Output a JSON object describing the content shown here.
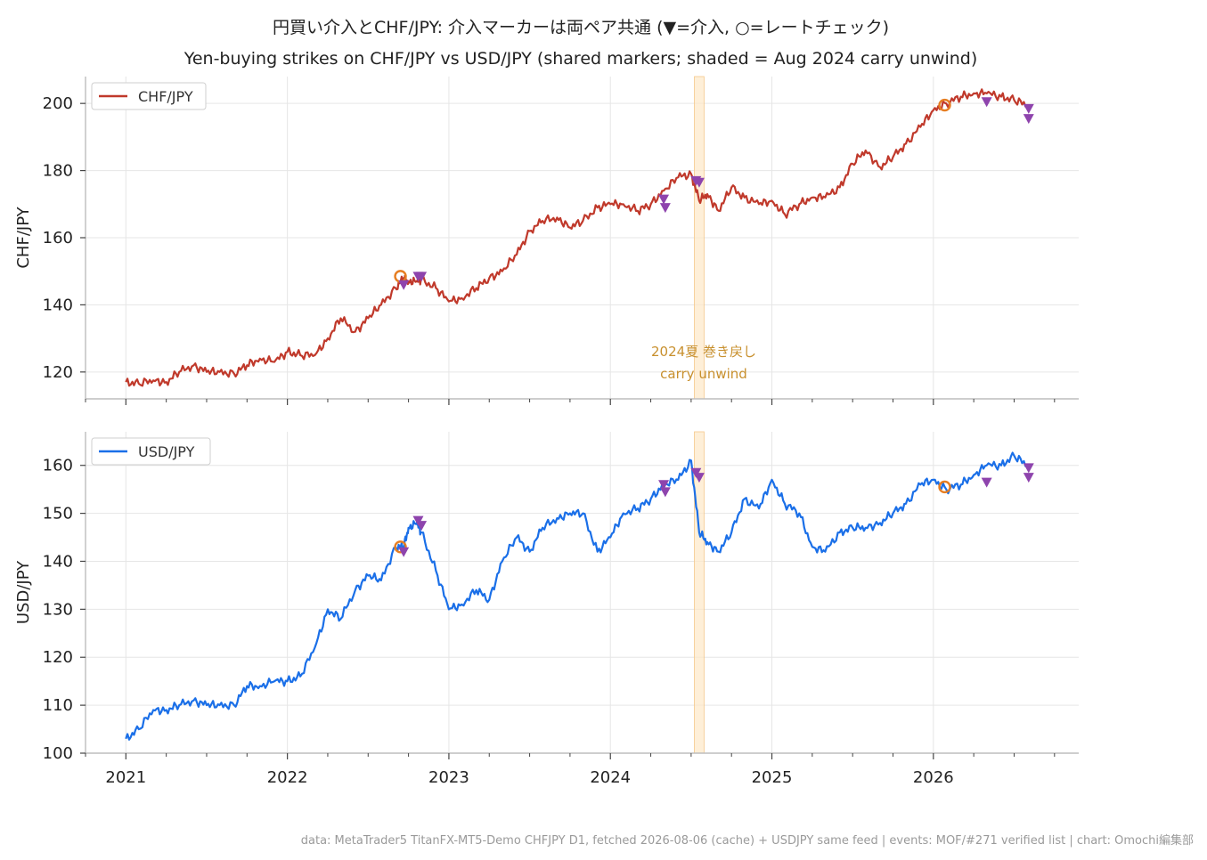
{
  "title_jp": "円買い介入とCHF/JPY: 介入マーカーは両ペア共通 (▼=介入, ○=レートチェック)",
  "title_en": "Yen-buying strikes on CHF/JPY vs USD/JPY (shared markers; shaded = Aug 2024 carry unwind)",
  "footer": "data: MetaTrader5 TitanFX-MT5-Demo CHFJPY D1, fetched 2026-08-06 (cache) + USDJPY same feed | events: MOF/#271 verified list | chart: Omochi編集部",
  "shade_label_jp": "2024夏 巻き戻し",
  "shade_label_en": "carry unwind",
  "colors": {
    "chf": "#c0392b",
    "usd": "#1a6fe8",
    "intervention": "#8e44ad",
    "ratecheck": "#e67e22",
    "shade": "#fde8c8"
  },
  "chart_data": [
    {
      "type": "line",
      "ylabel": "CHF/JPY",
      "legend": "CHF/JPY",
      "legend_position": "top-left",
      "grid": true,
      "xlim": [
        2020.75,
        2026.9
      ],
      "ylim": [
        112,
        208
      ],
      "yticks": [
        120,
        140,
        160,
        180,
        200
      ],
      "series": [
        {
          "name": "CHF/JPY",
          "x": [
            2021.0,
            2021.08,
            2021.17,
            2021.25,
            2021.33,
            2021.42,
            2021.5,
            2021.58,
            2021.67,
            2021.75,
            2021.83,
            2021.92,
            2022.0,
            2022.08,
            2022.17,
            2022.25,
            2022.33,
            2022.42,
            2022.5,
            2022.58,
            2022.67,
            2022.72,
            2022.75,
            2022.8,
            2022.83,
            2022.92,
            2023.0,
            2023.08,
            2023.17,
            2023.25,
            2023.33,
            2023.42,
            2023.5,
            2023.58,
            2023.67,
            2023.75,
            2023.83,
            2023.92,
            2024.0,
            2024.08,
            2024.17,
            2024.25,
            2024.33,
            2024.42,
            2024.5,
            2024.55,
            2024.6,
            2024.67,
            2024.75,
            2024.83,
            2024.92,
            2025.0,
            2025.08,
            2025.17,
            2025.25,
            2025.33,
            2025.42,
            2025.5,
            2025.58,
            2025.67,
            2025.75,
            2025.83,
            2025.92,
            2026.0,
            2026.08,
            2026.17,
            2026.25,
            2026.33,
            2026.42,
            2026.5,
            2026.58
          ],
          "values": [
            117,
            116.5,
            117.5,
            117,
            120,
            122,
            120,
            120,
            119.5,
            122,
            124,
            123,
            126,
            125,
            125,
            130,
            136,
            132,
            136,
            140,
            145,
            148,
            147,
            147,
            147.5,
            145,
            141,
            142,
            145,
            148,
            150,
            155,
            162,
            165,
            166,
            163,
            165,
            169,
            170,
            170,
            168,
            170,
            174,
            178,
            179,
            171,
            173,
            168,
            175,
            172,
            170,
            171,
            167,
            170,
            172,
            172,
            175,
            182,
            186,
            181,
            184,
            188,
            193,
            198,
            200,
            202,
            203,
            203,
            202,
            201,
            199.5
          ]
        }
      ],
      "events": [
        {
          "kind": "ratecheck",
          "x": 2022.7,
          "y": 148.5
        },
        {
          "kind": "intervention",
          "x": 2022.72,
          "y": 146
        },
        {
          "kind": "intervention",
          "x": 2022.81,
          "y": 148.5
        },
        {
          "kind": "intervention",
          "x": 2022.83,
          "y": 148.5
        },
        {
          "kind": "intervention",
          "x": 2024.33,
          "y": 171.5
        },
        {
          "kind": "intervention",
          "x": 2024.34,
          "y": 169
        },
        {
          "kind": "intervention",
          "x": 2024.53,
          "y": 177
        },
        {
          "kind": "intervention",
          "x": 2024.55,
          "y": 176.5
        },
        {
          "kind": "ratecheck",
          "x": 2026.07,
          "y": 199.5
        },
        {
          "kind": "intervention",
          "x": 2026.33,
          "y": 200.5
        },
        {
          "kind": "intervention",
          "x": 2026.59,
          "y": 198.5
        },
        {
          "kind": "intervention",
          "x": 2026.59,
          "y": 195.5
        }
      ],
      "shade": [
        2024.52,
        2024.58
      ]
    },
    {
      "type": "line",
      "ylabel": "USD/JPY",
      "legend": "USD/JPY",
      "legend_position": "top-left",
      "grid": true,
      "xlim": [
        2020.75,
        2026.9
      ],
      "ylim": [
        100,
        167
      ],
      "yticks": [
        100,
        110,
        120,
        130,
        140,
        150,
        160
      ],
      "xticks": [
        "2021",
        "2022",
        "2023",
        "2024",
        "2025",
        "2026"
      ],
      "series": [
        {
          "name": "USD/JPY",
          "x": [
            2021.0,
            2021.08,
            2021.17,
            2021.25,
            2021.33,
            2021.42,
            2021.5,
            2021.58,
            2021.67,
            2021.75,
            2021.83,
            2021.92,
            2022.0,
            2022.08,
            2022.17,
            2022.25,
            2022.33,
            2022.42,
            2022.5,
            2022.58,
            2022.67,
            2022.72,
            2022.75,
            2022.8,
            2022.83,
            2022.92,
            2023.0,
            2023.08,
            2023.17,
            2023.25,
            2023.33,
            2023.42,
            2023.5,
            2023.58,
            2023.67,
            2023.75,
            2023.83,
            2023.92,
            2024.0,
            2024.08,
            2024.17,
            2024.25,
            2024.33,
            2024.42,
            2024.5,
            2024.55,
            2024.6,
            2024.67,
            2024.75,
            2024.83,
            2024.92,
            2025.0,
            2025.08,
            2025.17,
            2025.25,
            2025.33,
            2025.42,
            2025.5,
            2025.58,
            2025.67,
            2025.75,
            2025.83,
            2025.92,
            2026.0,
            2026.08,
            2026.17,
            2026.25,
            2026.33,
            2026.42,
            2026.5,
            2026.58
          ],
          "values": [
            103,
            105,
            109,
            109,
            110,
            111,
            110,
            110,
            110,
            114,
            114,
            115,
            115,
            116,
            122,
            130,
            128,
            134,
            137,
            136,
            143,
            143,
            147,
            148,
            146,
            138,
            130,
            131,
            134,
            132,
            140,
            145,
            142,
            147,
            149,
            150,
            150,
            142,
            145,
            150,
            151,
            153,
            156,
            157,
            161,
            146,
            144,
            142,
            146,
            153,
            151,
            157,
            152,
            150,
            143,
            142,
            146,
            147,
            147,
            148,
            150,
            152,
            156,
            157,
            155,
            156,
            158,
            160,
            160,
            162,
            160
          ]
        }
      ],
      "events": [
        {
          "kind": "ratecheck",
          "x": 2022.7,
          "y": 143
        },
        {
          "kind": "intervention",
          "x": 2022.72,
          "y": 142
        },
        {
          "kind": "intervention",
          "x": 2022.81,
          "y": 148.5
        },
        {
          "kind": "intervention",
          "x": 2022.83,
          "y": 147.5
        },
        {
          "kind": "intervention",
          "x": 2024.33,
          "y": 156
        },
        {
          "kind": "intervention",
          "x": 2024.34,
          "y": 154.5
        },
        {
          "kind": "intervention",
          "x": 2024.53,
          "y": 158.5
        },
        {
          "kind": "intervention",
          "x": 2024.55,
          "y": 157.5
        },
        {
          "kind": "ratecheck",
          "x": 2026.07,
          "y": 155.5
        },
        {
          "kind": "intervention",
          "x": 2026.33,
          "y": 156.5
        },
        {
          "kind": "intervention",
          "x": 2026.59,
          "y": 159.5
        },
        {
          "kind": "intervention",
          "x": 2026.59,
          "y": 157.5
        }
      ],
      "shade": [
        2024.52,
        2024.58
      ]
    }
  ]
}
